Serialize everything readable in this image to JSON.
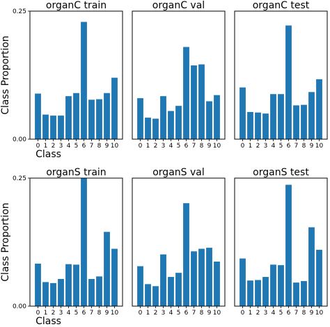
{
  "chart_data": [
    {
      "type": "bar",
      "title": "organC train",
      "categories": [
        "0",
        "1",
        "2",
        "3",
        "4",
        "5",
        "6",
        "7",
        "8",
        "9",
        "10"
      ],
      "values": [
        0.089,
        0.048,
        0.046,
        0.046,
        0.084,
        0.09,
        0.229,
        0.077,
        0.078,
        0.09,
        0.12
      ],
      "ylim": [
        0,
        0.25
      ],
      "yticks": [
        "0.00",
        "0.25"
      ],
      "ylabel": "Class Proportion",
      "xlabel": "Class"
    },
    {
      "type": "bar",
      "title": "organC val",
      "categories": [
        "0",
        "1",
        "2",
        "3",
        "4",
        "5",
        "6",
        "7",
        "8",
        "9",
        "10"
      ],
      "values": [
        0.08,
        0.042,
        0.04,
        0.084,
        0.055,
        0.065,
        0.18,
        0.144,
        0.146,
        0.074,
        0.086
      ],
      "ylim": [
        0,
        0.25
      ],
      "yticks": [],
      "ylabel": "",
      "xlabel": ""
    },
    {
      "type": "bar",
      "title": "organC test",
      "categories": [
        "0",
        "1",
        "2",
        "3",
        "4",
        "5",
        "6",
        "7",
        "8",
        "9",
        "10"
      ],
      "values": [
        0.101,
        0.053,
        0.052,
        0.05,
        0.088,
        0.088,
        0.222,
        0.066,
        0.067,
        0.092,
        0.117
      ],
      "ylim": [
        0,
        0.25
      ],
      "yticks": [],
      "ylabel": "",
      "xlabel": ""
    },
    {
      "type": "bar",
      "title": "organS train",
      "categories": [
        "0",
        "1",
        "2",
        "3",
        "4",
        "5",
        "6",
        "7",
        "8",
        "9",
        "10"
      ],
      "values": [
        0.083,
        0.047,
        0.045,
        0.053,
        0.082,
        0.081,
        0.25,
        0.053,
        0.058,
        0.145,
        0.112
      ],
      "ylim": [
        0,
        0.25
      ],
      "yticks": [
        "0.00",
        "0.25"
      ],
      "ylabel": "Class Proportion",
      "xlabel": "Class"
    },
    {
      "type": "bar",
      "title": "organS val",
      "categories": [
        "0",
        "1",
        "2",
        "3",
        "4",
        "5",
        "6",
        "7",
        "8",
        "9",
        "10"
      ],
      "values": [
        0.078,
        0.043,
        0.039,
        0.101,
        0.057,
        0.065,
        0.201,
        0.107,
        0.112,
        0.114,
        0.087
      ],
      "ylim": [
        0,
        0.25
      ],
      "yticks": [],
      "ylabel": "",
      "xlabel": ""
    },
    {
      "type": "bar",
      "title": "organS test",
      "categories": [
        "0",
        "1",
        "2",
        "3",
        "4",
        "5",
        "6",
        "7",
        "8",
        "9",
        "10"
      ],
      "values": [
        0.093,
        0.05,
        0.051,
        0.057,
        0.081,
        0.08,
        0.237,
        0.046,
        0.049,
        0.154,
        0.11
      ],
      "ylim": [
        0,
        0.25
      ],
      "yticks": [],
      "ylabel": "",
      "xlabel": ""
    }
  ],
  "colors": {
    "bar": "#1f77b4"
  }
}
